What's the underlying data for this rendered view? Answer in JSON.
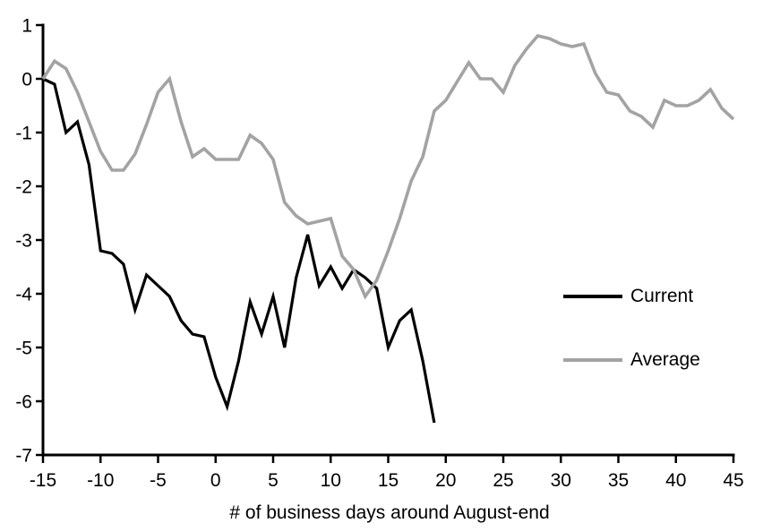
{
  "chart_data": {
    "type": "line",
    "title": "",
    "xlabel": "# of business days around August-end",
    "ylabel": "",
    "xlim": [
      -15,
      45
    ],
    "ylim": [
      -7,
      1
    ],
    "x_ticks": [
      -15,
      -10,
      -5,
      0,
      5,
      10,
      15,
      20,
      25,
      30,
      35,
      40,
      45
    ],
    "y_ticks": [
      1,
      0,
      -1,
      -2,
      -3,
      -4,
      -5,
      -6,
      -7
    ],
    "grid": false,
    "legend_position": "right-middle",
    "axis_color": "#000000",
    "series": [
      {
        "name": "Current",
        "color": "#000000",
        "width": 3.2,
        "x_start": -15,
        "x_step": 1,
        "values": [
          0,
          -0.1,
          -1.0,
          -0.8,
          -1.6,
          -3.2,
          -3.25,
          -3.45,
          -4.3,
          -3.65,
          -3.85,
          -4.05,
          -4.5,
          -4.75,
          -4.8,
          -5.55,
          -6.1,
          -5.25,
          -4.15,
          -4.75,
          -4.05,
          -5.0,
          -3.7,
          -2.9,
          -3.85,
          -3.5,
          -3.9,
          -3.55,
          -3.7,
          -3.9,
          -5.0,
          -4.5,
          -4.3,
          -5.25,
          -6.4
        ]
      },
      {
        "name": "Average",
        "color": "#a3a3a3",
        "width": 3.6,
        "x_start": -15,
        "x_step": 1,
        "values": [
          0,
          0.33,
          0.19,
          -0.25,
          -0.8,
          -1.35,
          -1.7,
          -1.7,
          -1.4,
          -0.85,
          -0.25,
          0.0,
          -0.8,
          -1.45,
          -1.3,
          -1.5,
          -1.5,
          -1.5,
          -1.05,
          -1.2,
          -1.5,
          -2.3,
          -2.55,
          -2.7,
          -2.65,
          -2.6,
          -3.3,
          -3.55,
          -4.05,
          -3.75,
          -3.2,
          -2.6,
          -1.9,
          -1.45,
          -0.6,
          -0.4,
          -0.05,
          0.3,
          0.0,
          0.0,
          -0.25,
          0.25,
          0.55,
          0.8,
          0.75,
          0.65,
          0.6,
          0.65,
          0.1,
          -0.25,
          -0.3,
          -0.6,
          -0.7,
          -0.9,
          -0.4,
          -0.5,
          -0.5,
          -0.4,
          -0.2,
          -0.55,
          -0.75
        ]
      }
    ]
  }
}
